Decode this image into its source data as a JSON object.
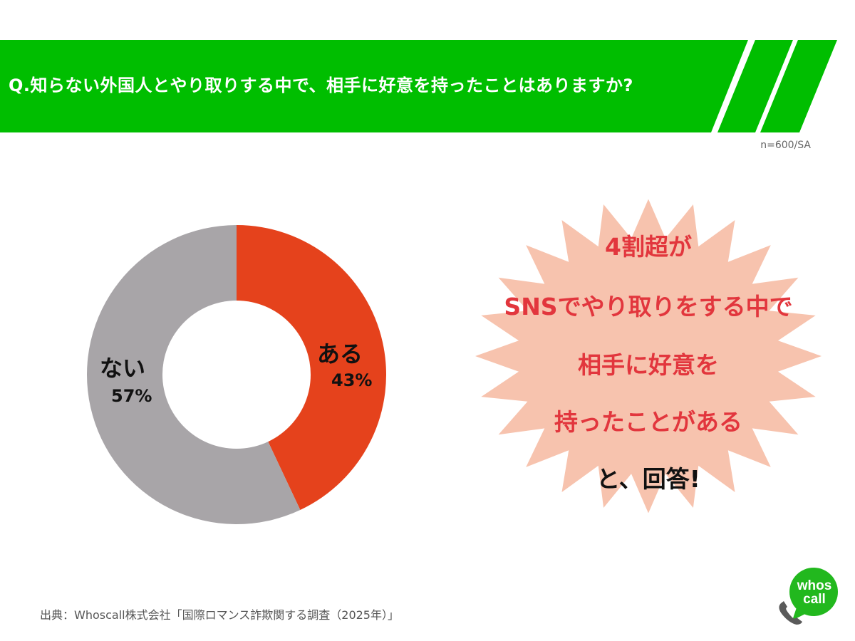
{
  "banner": {
    "question": "Q.知らない外国人とやり取りする中で、相手に好意を持ったことはありますか?",
    "color": "#00BE00"
  },
  "sample_note": "n=600/SA",
  "chart_data": {
    "type": "pie",
    "variant": "donut",
    "title": "Q.知らない外国人とやり取りする中で、相手に好意を持ったことはありますか?",
    "categories": [
      "ある",
      "ない"
    ],
    "values": [
      43,
      57
    ],
    "unit": "%",
    "colors": [
      "#E5421C",
      "#A8A5A8"
    ],
    "sample": "n=600/SA",
    "labels": [
      {
        "name": "ある",
        "pct": "43%"
      },
      {
        "name": "ない",
        "pct": "57%"
      }
    ],
    "legend": "none (labels placed on slices)"
  },
  "callout": {
    "lines": [
      "4割超が",
      "SNSでやり取りをする中で",
      "相手に好意を",
      "持ったことがある"
    ],
    "closing": "と、回答!",
    "fill": "#F7C3AE",
    "text_color": "#E2363D"
  },
  "source": "出典：Whoscall株式会社「国際ロマンス詐欺関する調査（2025年）」",
  "logo": {
    "line1": "whos",
    "line2": "call",
    "color": "#22B81E"
  }
}
